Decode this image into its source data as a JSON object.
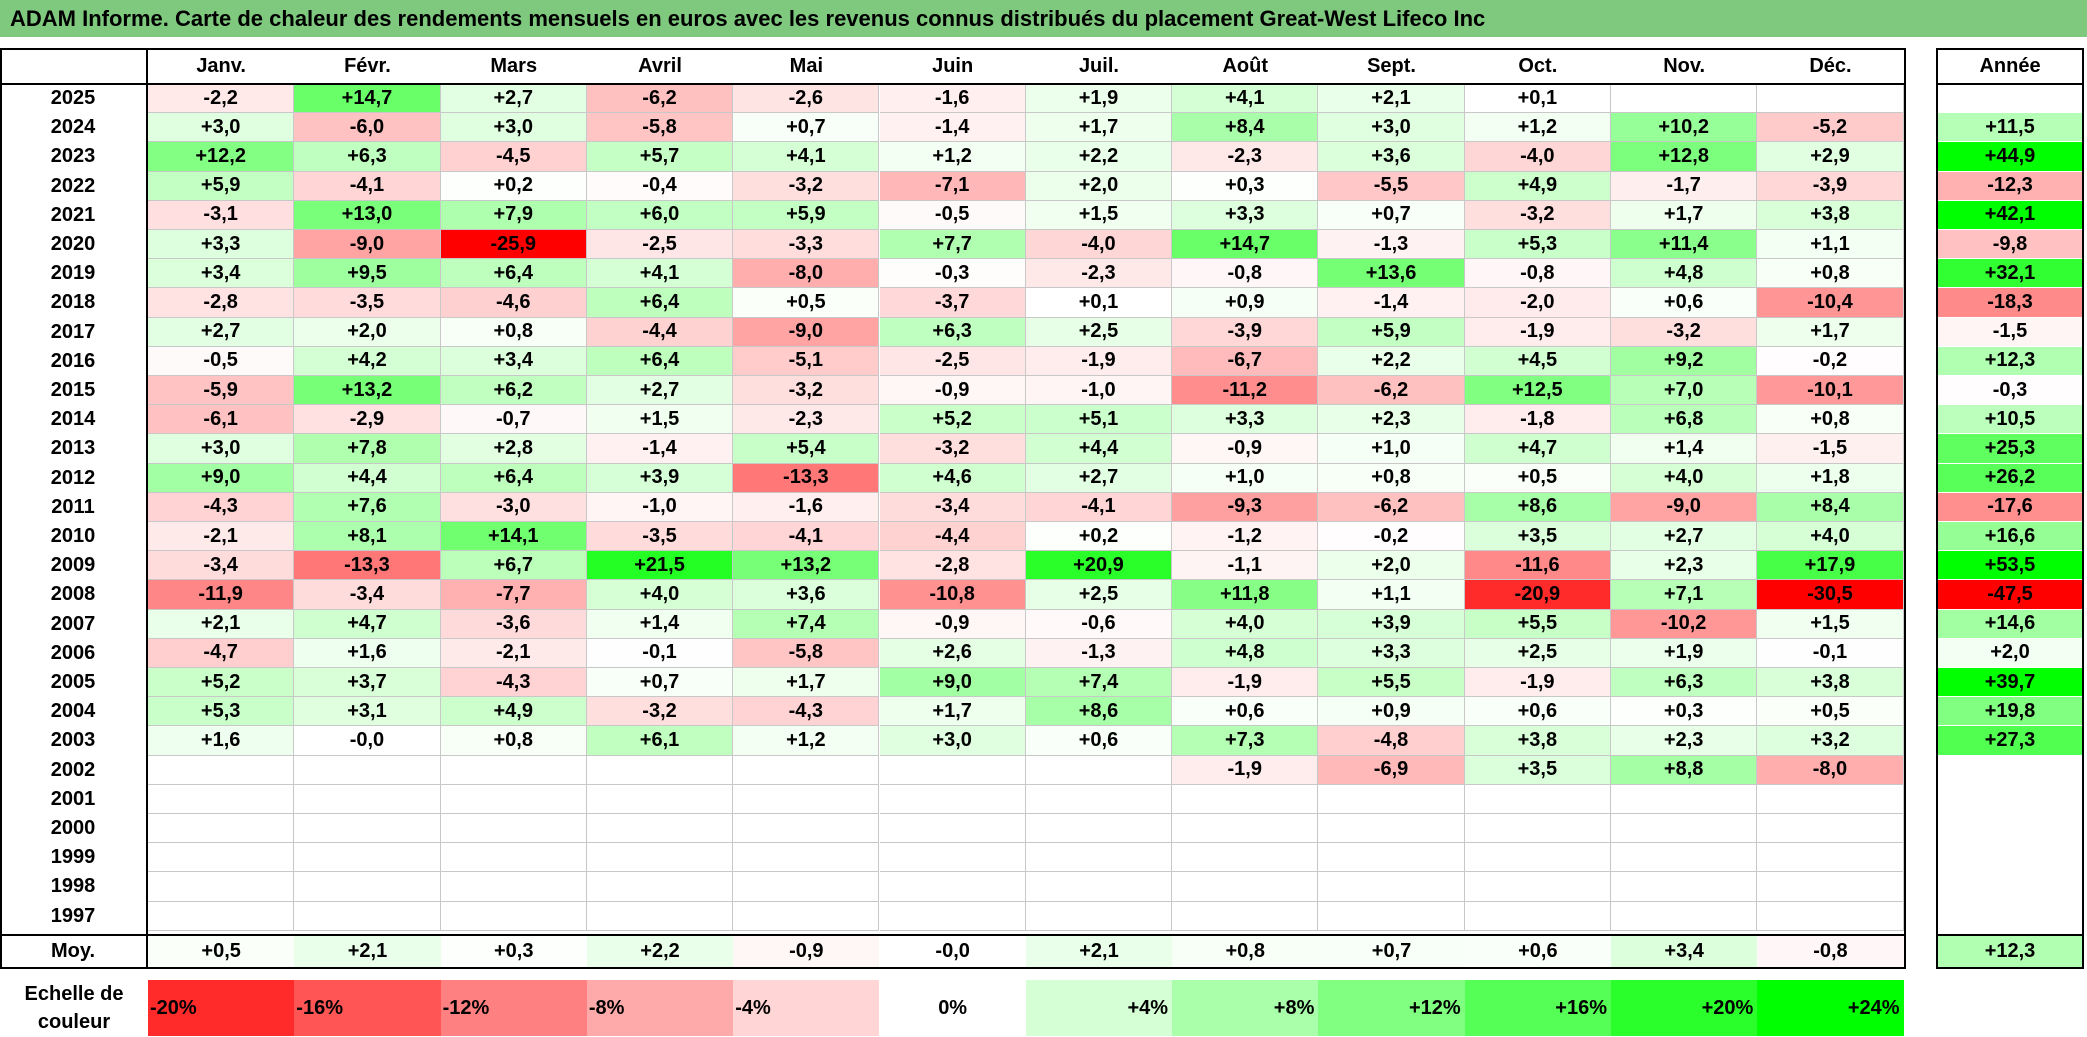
{
  "title": "ADAM Informe. Carte de chaleur des rendements mensuels en euros avec les revenus connus distribués du placement Great-West Lifeco Inc",
  "chart_data": {
    "type": "heatmap",
    "title": "ADAM Informe. Carte de chaleur des rendements mensuels en euros avec les revenus connus distribués du placement Great-West Lifeco Inc",
    "months": [
      "Janv.",
      "Févr.",
      "Mars",
      "Avril",
      "Mai",
      "Juin",
      "Juil.",
      "Août",
      "Sept.",
      "Oct.",
      "Nov.",
      "Déc."
    ],
    "year_header": "Année",
    "rows": [
      {
        "year": "2025",
        "values": [
          "-2,2",
          "+14,7",
          "+2,7",
          "-6,2",
          "-2,6",
          "-1,6",
          "+1,9",
          "+4,1",
          "+2,1",
          "+0,1",
          "",
          ""
        ],
        "annual": ""
      },
      {
        "year": "2024",
        "values": [
          "+3,0",
          "-6,0",
          "+3,0",
          "-5,8",
          "+0,7",
          "-1,4",
          "+1,7",
          "+8,4",
          "+3,0",
          "+1,2",
          "+10,2",
          "-5,2"
        ],
        "annual": "+11,5"
      },
      {
        "year": "2023",
        "values": [
          "+12,2",
          "+6,3",
          "-4,5",
          "+5,7",
          "+4,1",
          "+1,2",
          "+2,2",
          "-2,3",
          "+3,6",
          "-4,0",
          "+12,8",
          "+2,9"
        ],
        "annual": "+44,9"
      },
      {
        "year": "2022",
        "values": [
          "+5,9",
          "-4,1",
          "+0,2",
          "-0,4",
          "-3,2",
          "-7,1",
          "+2,0",
          "+0,3",
          "-5,5",
          "+4,9",
          "-1,7",
          "-3,9"
        ],
        "annual": "-12,3"
      },
      {
        "year": "2021",
        "values": [
          "-3,1",
          "+13,0",
          "+7,9",
          "+6,0",
          "+5,9",
          "-0,5",
          "+1,5",
          "+3,3",
          "+0,7",
          "-3,2",
          "+1,7",
          "+3,8"
        ],
        "annual": "+42,1"
      },
      {
        "year": "2020",
        "values": [
          "+3,3",
          "-9,0",
          "-25,9",
          "-2,5",
          "-3,3",
          "+7,7",
          "-4,0",
          "+14,7",
          "-1,3",
          "+5,3",
          "+11,4",
          "+1,1"
        ],
        "annual": "-9,8"
      },
      {
        "year": "2019",
        "values": [
          "+3,4",
          "+9,5",
          "+6,4",
          "+4,1",
          "-8,0",
          "-0,3",
          "-2,3",
          "-0,8",
          "+13,6",
          "-0,8",
          "+4,8",
          "+0,8"
        ],
        "annual": "+32,1"
      },
      {
        "year": "2018",
        "values": [
          "-2,8",
          "-3,5",
          "-4,6",
          "+6,4",
          "+0,5",
          "-3,7",
          "+0,1",
          "+0,9",
          "-1,4",
          "-2,0",
          "+0,6",
          "-10,4"
        ],
        "annual": "-18,3"
      },
      {
        "year": "2017",
        "values": [
          "+2,7",
          "+2,0",
          "+0,8",
          "-4,4",
          "-9,0",
          "+6,3",
          "+2,5",
          "-3,9",
          "+5,9",
          "-1,9",
          "-3,2",
          "+1,7"
        ],
        "annual": "-1,5"
      },
      {
        "year": "2016",
        "values": [
          "-0,5",
          "+4,2",
          "+3,4",
          "+6,4",
          "-5,1",
          "-2,5",
          "-1,9",
          "-6,7",
          "+2,2",
          "+4,5",
          "+9,2",
          "-0,2"
        ],
        "annual": "+12,3"
      },
      {
        "year": "2015",
        "values": [
          "-5,9",
          "+13,2",
          "+6,2",
          "+2,7",
          "-3,2",
          "-0,9",
          "-1,0",
          "-11,2",
          "-6,2",
          "+12,5",
          "+7,0",
          "-10,1"
        ],
        "annual": "-0,3"
      },
      {
        "year": "2014",
        "values": [
          "-6,1",
          "-2,9",
          "-0,7",
          "+1,5",
          "-2,3",
          "+5,2",
          "+5,1",
          "+3,3",
          "+2,3",
          "-1,8",
          "+6,8",
          "+0,8"
        ],
        "annual": "+10,5"
      },
      {
        "year": "2013",
        "values": [
          "+3,0",
          "+7,8",
          "+2,8",
          "-1,4",
          "+5,4",
          "-3,2",
          "+4,4",
          "-0,9",
          "+1,0",
          "+4,7",
          "+1,4",
          "-1,5"
        ],
        "annual": "+25,3"
      },
      {
        "year": "2012",
        "values": [
          "+9,0",
          "+4,4",
          "+6,4",
          "+3,9",
          "-13,3",
          "+4,6",
          "+2,7",
          "+1,0",
          "+0,8",
          "+0,5",
          "+4,0",
          "+1,8"
        ],
        "annual": "+26,2"
      },
      {
        "year": "2011",
        "values": [
          "-4,3",
          "+7,6",
          "-3,0",
          "-1,0",
          "-1,6",
          "-3,4",
          "-4,1",
          "-9,3",
          "-6,2",
          "+8,6",
          "-9,0",
          "+8,4"
        ],
        "annual": "-17,6"
      },
      {
        "year": "2010",
        "values": [
          "-2,1",
          "+8,1",
          "+14,1",
          "-3,5",
          "-4,1",
          "-4,4",
          "+0,2",
          "-1,2",
          "-0,2",
          "+3,5",
          "+2,7",
          "+4,0"
        ],
        "annual": "+16,6"
      },
      {
        "year": "2009",
        "values": [
          "-3,4",
          "-13,3",
          "+6,7",
          "+21,5",
          "+13,2",
          "-2,8",
          "+20,9",
          "-1,1",
          "+2,0",
          "-11,6",
          "+2,3",
          "+17,9"
        ],
        "annual": "+53,5"
      },
      {
        "year": "2008",
        "values": [
          "-11,9",
          "-3,4",
          "-7,7",
          "+4,0",
          "+3,6",
          "-10,8",
          "+2,5",
          "+11,8",
          "+1,1",
          "-20,9",
          "+7,1",
          "-30,5"
        ],
        "annual": "-47,5"
      },
      {
        "year": "2007",
        "values": [
          "+2,1",
          "+4,7",
          "-3,6",
          "+1,4",
          "+7,4",
          "-0,9",
          "-0,6",
          "+4,0",
          "+3,9",
          "+5,5",
          "-10,2",
          "+1,5"
        ],
        "annual": "+14,6"
      },
      {
        "year": "2006",
        "values": [
          "-4,7",
          "+1,6",
          "-2,1",
          "-0,1",
          "-5,8",
          "+2,6",
          "-1,3",
          "+4,8",
          "+3,3",
          "+2,5",
          "+1,9",
          "-0,1"
        ],
        "annual": "+2,0"
      },
      {
        "year": "2005",
        "values": [
          "+5,2",
          "+3,7",
          "-4,3",
          "+0,7",
          "+1,7",
          "+9,0",
          "+7,4",
          "-1,9",
          "+5,5",
          "-1,9",
          "+6,3",
          "+3,8"
        ],
        "annual": "+39,7"
      },
      {
        "year": "2004",
        "values": [
          "+5,3",
          "+3,1",
          "+4,9",
          "-3,2",
          "-4,3",
          "+1,7",
          "+8,6",
          "+0,6",
          "+0,9",
          "+0,6",
          "+0,3",
          "+0,5"
        ],
        "annual": "+19,8"
      },
      {
        "year": "2003",
        "values": [
          "+1,6",
          "-0,0",
          "+0,8",
          "+6,1",
          "+1,2",
          "+3,0",
          "+0,6",
          "+7,3",
          "-4,8",
          "+3,8",
          "+2,3",
          "+3,2"
        ],
        "annual": "+27,3"
      },
      {
        "year": "2002",
        "values": [
          "",
          "",
          "",
          "",
          "",
          "",
          "",
          "-1,9",
          "-6,9",
          "+3,5",
          "+8,8",
          "-8,0"
        ],
        "annual": ""
      },
      {
        "year": "2001",
        "values": [
          "",
          "",
          "",
          "",
          "",
          "",
          "",
          "",
          "",
          "",
          "",
          ""
        ],
        "annual": ""
      },
      {
        "year": "2000",
        "values": [
          "",
          "",
          "",
          "",
          "",
          "",
          "",
          "",
          "",
          "",
          "",
          ""
        ],
        "annual": ""
      },
      {
        "year": "1999",
        "values": [
          "",
          "",
          "",
          "",
          "",
          "",
          "",
          "",
          "",
          "",
          "",
          ""
        ],
        "annual": ""
      },
      {
        "year": "1998",
        "values": [
          "",
          "",
          "",
          "",
          "",
          "",
          "",
          "",
          "",
          "",
          "",
          ""
        ],
        "annual": ""
      },
      {
        "year": "1997",
        "values": [
          "",
          "",
          "",
          "",
          "",
          "",
          "",
          "",
          "",
          "",
          "",
          ""
        ],
        "annual": ""
      }
    ],
    "average": {
      "label": "Moy.",
      "values": [
        "+0,5",
        "+2,1",
        "+0,3",
        "+2,2",
        "-0,9",
        "-0,0",
        "+2,1",
        "+0,8",
        "+0,7",
        "+0,6",
        "+3,4",
        "-0,8"
      ],
      "annual": "+12,3"
    },
    "scale": {
      "label": "Echelle de couleur",
      "steps": [
        "-20%",
        "-16%",
        "-12%",
        "-8%",
        "-4%",
        "0%",
        "+4%",
        "+8%",
        "+12%",
        "+16%",
        "+20%",
        "+24%"
      ]
    },
    "colors": {
      "title_bg": "#7fc97f",
      "negative_max": "#ff0000",
      "neutral": "#ffffff",
      "positive_max": "#00ff00"
    }
  }
}
